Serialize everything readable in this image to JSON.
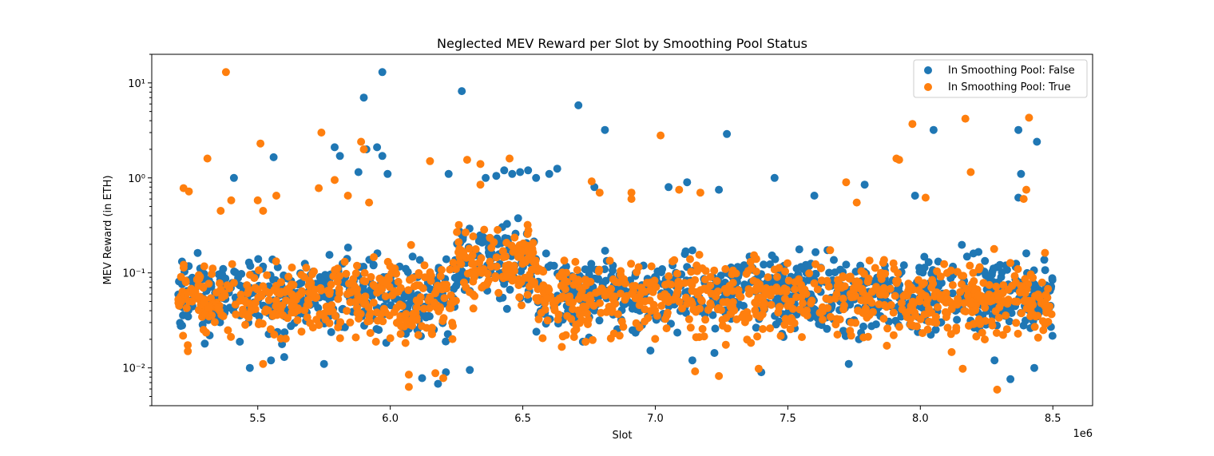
{
  "chart_data": {
    "type": "scatter",
    "title": "Neglected MEV Reward per Slot by Smoothing Pool Status",
    "xlabel": "Slot",
    "ylabel": "MEV Reward (in ETH)",
    "x_offset_label": "1e6",
    "xlim": [
      5.1,
      8.65
    ],
    "ylim": [
      0.004,
      20
    ],
    "yscale": "log",
    "grid": false,
    "legend_position": "top-right",
    "x_ticks": [
      5.5,
      6.0,
      6.5,
      7.0,
      7.5,
      8.0,
      8.5
    ],
    "x_tick_labels": [
      "5.5",
      "6.0",
      "6.5",
      "7.0",
      "7.5",
      "8.0",
      "8.5"
    ],
    "y_ticks": [
      0.01,
      0.1,
      1,
      10
    ],
    "y_tick_labels": [
      "10⁻²",
      "10⁻¹",
      "10⁰",
      "10¹"
    ],
    "series": [
      {
        "name": "In Smoothing Pool: False",
        "color": "#1f77b4",
        "x": [
          5.97,
          5.9,
          6.27,
          6.71,
          6.81,
          7.27,
          5.56,
          5.79,
          5.81,
          5.88,
          5.91,
          5.95,
          5.97,
          5.99,
          5.41,
          6.22,
          6.36,
          6.4,
          6.43,
          6.46,
          6.49,
          6.52,
          6.55,
          6.6,
          6.63,
          6.77,
          7.05,
          7.12,
          7.24,
          7.45,
          8.05,
          8.37,
          8.38,
          8.44,
          8.37,
          7.79,
          7.98,
          7.6,
          6.18,
          6.21,
          5.47,
          5.55,
          5.6,
          5.3,
          5.75,
          8.28,
          8.34,
          6.3,
          6.12,
          7.4,
          8.43,
          7.73,
          7.14
        ],
        "y": [
          13.0,
          7.0,
          8.2,
          5.8,
          3.2,
          2.9,
          1.65,
          2.1,
          1.7,
          1.15,
          2.0,
          2.1,
          1.7,
          1.1,
          1.0,
          1.1,
          1.0,
          1.05,
          1.2,
          1.1,
          1.15,
          1.2,
          1.0,
          1.1,
          1.25,
          0.8,
          0.8,
          0.9,
          0.75,
          1.0,
          3.2,
          3.2,
          1.1,
          2.4,
          0.62,
          0.85,
          0.65,
          0.65,
          0.0068,
          0.009,
          0.01,
          0.012,
          0.013,
          0.018,
          0.011,
          0.012,
          0.0076,
          0.0095,
          0.0078,
          0.009,
          0.01,
          0.011,
          0.012
        ]
      },
      {
        "name": "In Smoothing Pool: True",
        "color": "#ff7f0e",
        "x": [
          5.38,
          5.31,
          5.51,
          5.74,
          5.89,
          5.9,
          6.29,
          6.34,
          6.45,
          6.91,
          7.02,
          7.97,
          7.91,
          7.92,
          8.17,
          8.19,
          8.41,
          8.4,
          5.22,
          5.24,
          5.36,
          5.4,
          5.5,
          5.52,
          5.57,
          5.73,
          5.79,
          5.84,
          5.92,
          6.34,
          6.15,
          7.09,
          7.17,
          6.76,
          6.79,
          6.91,
          7.72,
          7.76,
          8.02,
          8.39,
          6.07,
          6.07,
          8.29,
          8.16,
          7.24,
          7.15,
          7.39,
          6.2,
          6.17,
          5.52
        ],
        "y": [
          13.0,
          1.6,
          2.3,
          3.0,
          2.4,
          2.0,
          1.55,
          1.4,
          1.6,
          0.7,
          2.8,
          3.7,
          1.6,
          1.55,
          4.2,
          1.15,
          4.3,
          0.75,
          0.78,
          0.72,
          0.45,
          0.58,
          0.58,
          0.45,
          0.65,
          0.78,
          0.95,
          0.65,
          0.55,
          0.85,
          1.5,
          0.75,
          0.7,
          0.92,
          0.7,
          0.6,
          0.9,
          0.55,
          0.62,
          0.6,
          0.0063,
          0.0085,
          0.0059,
          0.0098,
          0.0082,
          0.0092,
          0.0098,
          0.0078,
          0.0088,
          0.011
        ]
      }
    ],
    "dense_clusters": [
      {
        "series": 0,
        "x_range": [
          5.2,
          8.5
        ],
        "y_center": 0.06,
        "count": 1300
      },
      {
        "series": 1,
        "x_range": [
          5.2,
          8.5
        ],
        "y_center": 0.055,
        "count": 1200
      }
    ]
  }
}
